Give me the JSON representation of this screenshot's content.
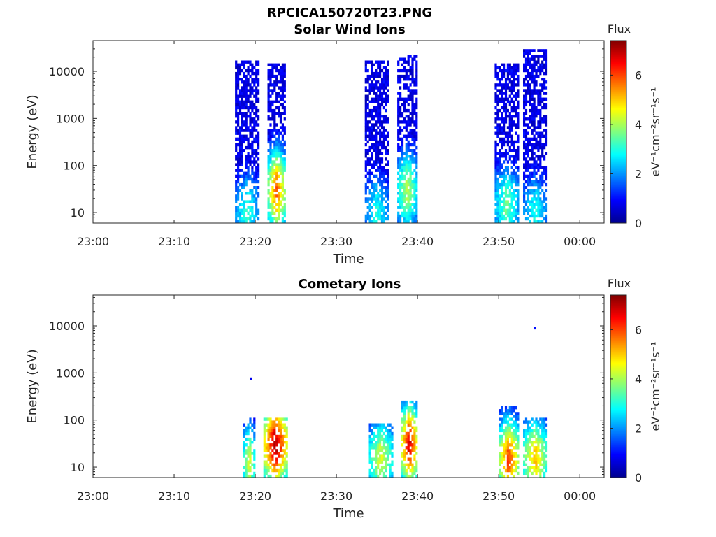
{
  "figure": {
    "title": "RPCICA150720T23.PNG"
  },
  "chart_data": [
    {
      "type": "heatmap",
      "title": "Solar Wind Ions",
      "xlabel": "Time",
      "ylabel": "Energy (eV)",
      "x_ticks": [
        "23:00",
        "23:10",
        "23:20",
        "23:30",
        "23:40",
        "23:50",
        "00:00"
      ],
      "x_range_minutes": [
        0,
        63
      ],
      "y_scale": "log",
      "y_ticks": [
        10,
        100,
        1000,
        10000
      ],
      "y_tick_labels": [
        "10",
        "100",
        "1000",
        "10000"
      ],
      "y_range": [
        6,
        45000
      ],
      "colorbar": {
        "label_top": "Flux",
        "units": "eV⁻¹cm⁻²sr⁻¹s⁻¹",
        "ticks": [
          0,
          2,
          4,
          6
        ],
        "range": [
          0,
          7.4
        ],
        "colormap": "jet"
      },
      "bursts": [
        {
          "t_start": 17.5,
          "t_end": 20.5,
          "e_min": 6,
          "e_max": 16000,
          "peak_flux": 3.2,
          "peak_energy": 10
        },
        {
          "t_start": 21.5,
          "t_end": 23.8,
          "e_min": 6,
          "e_max": 15000,
          "peak_flux": 5.8,
          "peak_energy": 30
        },
        {
          "t_start": 33.5,
          "t_end": 36.5,
          "e_min": 6,
          "e_max": 18000,
          "peak_flux": 3.0,
          "peak_energy": 10
        },
        {
          "t_start": 37.5,
          "t_end": 40.0,
          "e_min": 6,
          "e_max": 24000,
          "peak_flux": 4.2,
          "peak_energy": 30
        },
        {
          "t_start": 49.5,
          "t_end": 52.5,
          "e_min": 6,
          "e_max": 15000,
          "peak_flux": 3.6,
          "peak_energy": 15
        },
        {
          "t_start": 53.0,
          "t_end": 56.0,
          "e_min": 6,
          "e_max": 28000,
          "peak_flux": 3.0,
          "peak_energy": 10
        }
      ]
    },
    {
      "type": "heatmap",
      "title": "Cometary Ions",
      "xlabel": "Time",
      "ylabel": "Energy (eV)",
      "x_ticks": [
        "23:00",
        "23:10",
        "23:20",
        "23:30",
        "23:40",
        "23:50",
        "00:00"
      ],
      "x_range_minutes": [
        0,
        63
      ],
      "y_scale": "log",
      "y_ticks": [
        10,
        100,
        1000,
        10000
      ],
      "y_tick_labels": [
        "10",
        "100",
        "1000",
        "10000"
      ],
      "y_range": [
        6,
        45000
      ],
      "colorbar": {
        "label_top": "Flux",
        "units": "eV⁻¹cm⁻²sr⁻¹s⁻¹",
        "ticks": [
          0,
          2,
          4,
          6
        ],
        "range": [
          0,
          7.4
        ],
        "colormap": "jet"
      },
      "bursts": [
        {
          "t_start": 18.5,
          "t_end": 20.0,
          "e_min": 6,
          "e_max": 110,
          "peak_flux": 4.5,
          "peak_energy": 12
        },
        {
          "t_start": 21.0,
          "t_end": 24.0,
          "e_min": 6,
          "e_max": 110,
          "peak_flux": 7.2,
          "peak_energy": 30
        },
        {
          "t_start": 34.0,
          "t_end": 37.0,
          "e_min": 6,
          "e_max": 80,
          "peak_flux": 4.5,
          "peak_energy": 15
        },
        {
          "t_start": 38.0,
          "t_end": 40.0,
          "e_min": 6,
          "e_max": 260,
          "peak_flux": 7.0,
          "peak_energy": 30
        },
        {
          "t_start": 50.0,
          "t_end": 52.5,
          "e_min": 6,
          "e_max": 200,
          "peak_flux": 6.2,
          "peak_energy": 15
        },
        {
          "t_start": 53.0,
          "t_end": 56.0,
          "e_min": 6,
          "e_max": 120,
          "peak_flux": 5.2,
          "peak_energy": 15
        }
      ],
      "isolated_points": [
        {
          "t": 54.5,
          "energy": 9000,
          "flux": 1.0
        },
        {
          "t": 19.5,
          "energy": 750,
          "flux": 0.8
        }
      ]
    }
  ]
}
